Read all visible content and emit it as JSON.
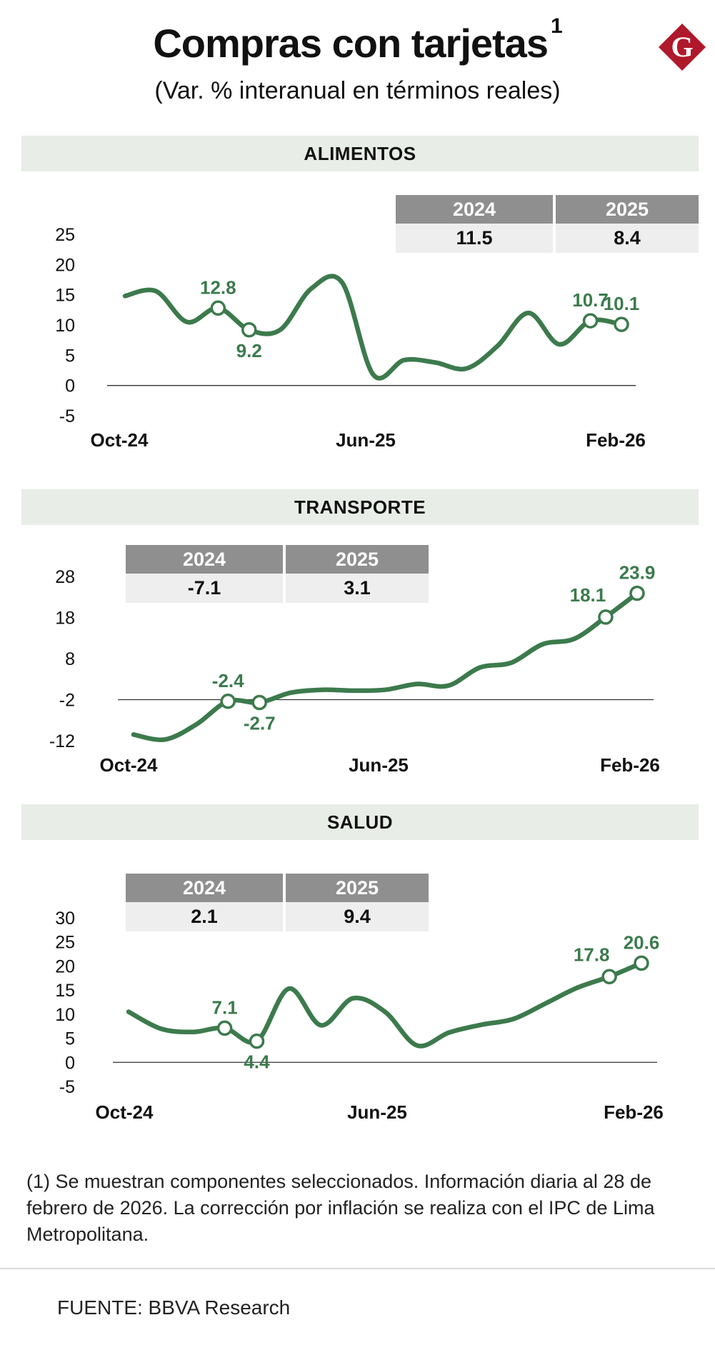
{
  "header": {
    "title": "Compras con tarjetas",
    "title_sup": "1",
    "subtitle": "(Var. % interanual en términos reales)",
    "logo_letter": "G"
  },
  "colors": {
    "line": "#3c7a4c",
    "band": "#e8ede7",
    "box_header": "#8f8f8f",
    "box_value": "#eeeeee",
    "logo": "#b0182b"
  },
  "chart_data": [
    {
      "type": "line",
      "title": "ALIMENTOS",
      "x": [
        "Oct-24",
        "Nov-24",
        "Dec-24",
        "Jan-25",
        "Feb-25",
        "Mar-25",
        "Apr-25",
        "May-25",
        "Jun-25",
        "Jul-25",
        "Aug-25",
        "Sep-25",
        "Oct-25",
        "Nov-25",
        "Dec-25",
        "Jan-26",
        "Feb-26"
      ],
      "xtick_labels": [
        "Oct-24",
        "Jun-25",
        "Feb-26"
      ],
      "yticks": [
        25,
        20,
        15,
        10,
        5,
        0,
        -5
      ],
      "ylim": [
        -5,
        25
      ],
      "series": [
        {
          "name": "Alimentos",
          "values": [
            14.8,
            15.6,
            10.5,
            12.8,
            9.2,
            9.2,
            16.0,
            17.0,
            1.8,
            4.2,
            3.8,
            2.8,
            6.5,
            12.0,
            6.8,
            10.7,
            10.1
          ]
        }
      ],
      "annotations": [
        {
          "index": 3,
          "label": "12.8",
          "pos": "above"
        },
        {
          "index": 4,
          "label": "9.2",
          "pos": "below"
        },
        {
          "index": 15,
          "label": "10.7",
          "pos": "above"
        },
        {
          "index": 16,
          "label": "10.1",
          "pos": "above"
        }
      ],
      "year_box": {
        "years": [
          "2024",
          "2025"
        ],
        "values": [
          "11.5",
          "8.4"
        ]
      }
    },
    {
      "type": "line",
      "title": "TRANSPORTE",
      "x": [
        "Oct-24",
        "Nov-24",
        "Dec-24",
        "Jan-25",
        "Feb-25",
        "Mar-25",
        "Apr-25",
        "May-25",
        "Jun-25",
        "Jul-25",
        "Aug-25",
        "Sep-25",
        "Oct-25",
        "Nov-25",
        "Dec-25",
        "Jan-26",
        "Feb-26"
      ],
      "xtick_labels": [
        "Oct-24",
        "Jun-25",
        "Feb-26"
      ],
      "yticks": [
        28,
        18,
        8,
        -2,
        -12
      ],
      "ylim": [
        -12,
        28
      ],
      "series": [
        {
          "name": "Transporte",
          "values": [
            -10.5,
            -11.7,
            -8.0,
            -2.4,
            -2.7,
            -0.3,
            0.4,
            0.2,
            0.4,
            1.8,
            1.4,
            5.8,
            7.0,
            11.5,
            12.8,
            18.1,
            23.9
          ]
        }
      ],
      "annotations": [
        {
          "index": 3,
          "label": "-2.4",
          "pos": "above"
        },
        {
          "index": 4,
          "label": "-2.7",
          "pos": "below"
        },
        {
          "index": 15,
          "label": "18.1",
          "pos": "above-left"
        },
        {
          "index": 16,
          "label": "23.9",
          "pos": "above"
        }
      ],
      "year_box": {
        "years": [
          "2024",
          "2025"
        ],
        "values": [
          "-7.1",
          "3.1"
        ]
      }
    },
    {
      "type": "line",
      "title": "SALUD",
      "x": [
        "Oct-24",
        "Nov-24",
        "Dec-24",
        "Jan-25",
        "Feb-25",
        "Mar-25",
        "Apr-25",
        "May-25",
        "Jun-25",
        "Jul-25",
        "Aug-25",
        "Sep-25",
        "Oct-25",
        "Nov-25",
        "Dec-25",
        "Jan-26",
        "Feb-26"
      ],
      "xtick_labels": [
        "Oct-24",
        "Jun-25",
        "Feb-26"
      ],
      "yticks": [
        30,
        25,
        20,
        15,
        10,
        5,
        0,
        -5
      ],
      "ylim": [
        -5,
        30
      ],
      "series": [
        {
          "name": "Salud",
          "values": [
            10.5,
            7.0,
            6.3,
            7.1,
            4.4,
            15.3,
            7.7,
            13.3,
            10.5,
            3.5,
            6.2,
            7.8,
            9.0,
            12.2,
            15.5,
            17.8,
            20.6
          ]
        }
      ],
      "annotations": [
        {
          "index": 3,
          "label": "7.1",
          "pos": "above"
        },
        {
          "index": 4,
          "label": "4.4",
          "pos": "below"
        },
        {
          "index": 15,
          "label": "17.8",
          "pos": "above-left"
        },
        {
          "index": 16,
          "label": "20.6",
          "pos": "above"
        }
      ],
      "year_box": {
        "years": [
          "2024",
          "2025"
        ],
        "values": [
          "2.1",
          "9.4"
        ]
      }
    }
  ],
  "footnote": "(1) Se muestran componentes seleccionados. Información diaria al 28 de febrero de 2026. La corrección por inflación se realiza con el IPC de Lima Metropolitana.",
  "source": "FUENTE: BBVA Research"
}
